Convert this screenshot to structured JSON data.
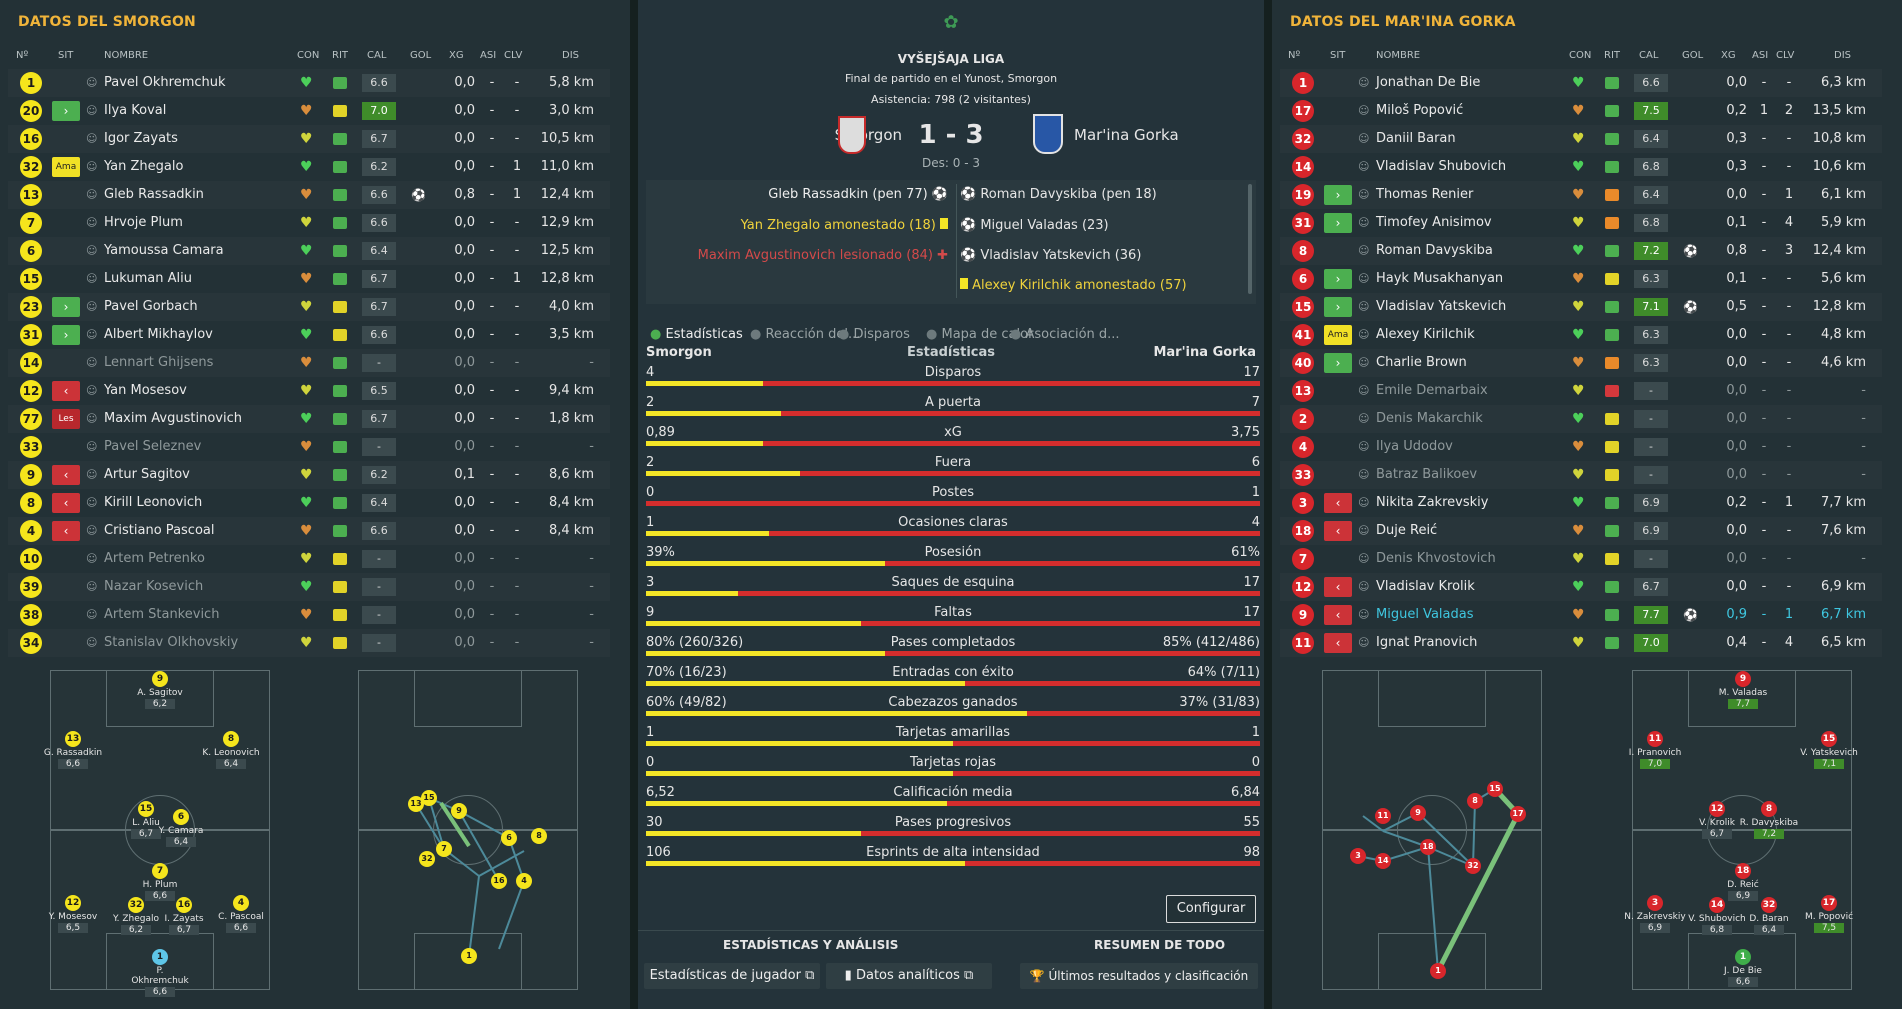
{
  "left": {
    "title": "DATOS DEL SMORGON",
    "headers": {
      "no": "Nº",
      "sit": "SIT",
      "nombre": "NOMBRE",
      "con": "CON",
      "rit": "RIT",
      "cal": "CAL",
      "gol": "GOL",
      "xg": "XG",
      "asi": "ASI",
      "clv": "CLV",
      "dis": "DIS"
    },
    "players": [
      {
        "n": "1",
        "sit": "",
        "name": "Pavel Okhremchuk",
        "rit": "g",
        "cal": "6.6",
        "gol": "",
        "xg": "0,0",
        "asi": "-",
        "clv": "-",
        "dis": "5,8 km"
      },
      {
        "n": "20",
        "sit": "sub",
        "name": "Ilya Koval",
        "rit": "y",
        "cal": "7.0",
        "calg": true,
        "gol": "",
        "xg": "0,0",
        "asi": "-",
        "clv": "-",
        "dis": "3,0 km"
      },
      {
        "n": "16",
        "sit": "",
        "name": "Igor Zayats",
        "rit": "g",
        "cal": "6.7",
        "gol": "",
        "xg": "0,0",
        "asi": "-",
        "clv": "-",
        "dis": "10,5 km"
      },
      {
        "n": "32",
        "sit": "ama",
        "name": "Yan Zhegalo",
        "rit": "g",
        "cal": "6.2",
        "gol": "",
        "xg": "0,0",
        "asi": "-",
        "clv": "1",
        "dis": "11,0 km"
      },
      {
        "n": "13",
        "sit": "",
        "name": "Gleb Rassadkin",
        "rit": "g",
        "cal": "6.6",
        "gol": "⚽",
        "xg": "0,8",
        "asi": "-",
        "clv": "1",
        "dis": "12,4 km"
      },
      {
        "n": "7",
        "sit": "",
        "name": "Hrvoje Plum",
        "rit": "g",
        "cal": "6.6",
        "gol": "",
        "xg": "0,0",
        "asi": "-",
        "clv": "-",
        "dis": "12,9 km"
      },
      {
        "n": "6",
        "sit": "",
        "name": "Yamoussa Camara",
        "rit": "g",
        "cal": "6.4",
        "gol": "",
        "xg": "0,0",
        "asi": "-",
        "clv": "-",
        "dis": "12,5 km"
      },
      {
        "n": "15",
        "sit": "",
        "name": "Lukuman Aliu",
        "rit": "g",
        "cal": "6.7",
        "gol": "",
        "xg": "0,0",
        "asi": "-",
        "clv": "1",
        "dis": "12,8 km"
      },
      {
        "n": "23",
        "sit": "sub",
        "name": "Pavel Gorbach",
        "rit": "y",
        "cal": "6.7",
        "gol": "",
        "xg": "0,0",
        "asi": "-",
        "clv": "-",
        "dis": "4,0 km"
      },
      {
        "n": "31",
        "sit": "sub",
        "name": "Albert Mikhaylov",
        "rit": "y",
        "cal": "6.6",
        "gol": "",
        "xg": "0,0",
        "asi": "-",
        "clv": "-",
        "dis": "3,5 km"
      },
      {
        "n": "14",
        "sit": "",
        "name": "Lennart Ghijsens",
        "rit": "g",
        "cal": "-",
        "gol": "",
        "xg": "0,0",
        "asi": "-",
        "clv": "-",
        "dis": "-",
        "dim": true
      },
      {
        "n": "12",
        "sit": "out",
        "name": "Yan Mosesov",
        "rit": "g",
        "cal": "6.5",
        "gol": "",
        "xg": "0,0",
        "asi": "-",
        "clv": "-",
        "dis": "9,4 km"
      },
      {
        "n": "77",
        "sit": "les",
        "name": "Maxim Avgustinovich",
        "rit": "g",
        "cal": "6.7",
        "gol": "",
        "xg": "0,0",
        "asi": "-",
        "clv": "-",
        "dis": "1,8 km"
      },
      {
        "n": "33",
        "sit": "",
        "name": "Pavel Seleznev",
        "rit": "g",
        "cal": "-",
        "gol": "",
        "xg": "0,0",
        "asi": "-",
        "clv": "-",
        "dis": "-",
        "dim": true
      },
      {
        "n": "9",
        "sit": "out",
        "name": "Artur Sagitov",
        "rit": "g",
        "cal": "6.2",
        "gol": "",
        "xg": "0,1",
        "asi": "-",
        "clv": "-",
        "dis": "8,6 km"
      },
      {
        "n": "8",
        "sit": "out",
        "name": "Kirill Leonovich",
        "rit": "g",
        "cal": "6.4",
        "gol": "",
        "xg": "0,0",
        "asi": "-",
        "clv": "-",
        "dis": "8,4 km"
      },
      {
        "n": "4",
        "sit": "out",
        "name": "Cristiano Pascoal",
        "rit": "g",
        "cal": "6.6",
        "gol": "",
        "xg": "0,0",
        "asi": "-",
        "clv": "-",
        "dis": "8,4 km"
      },
      {
        "n": "10",
        "sit": "",
        "name": "Artem Petrenko",
        "rit": "y",
        "cal": "-",
        "gol": "",
        "xg": "0,0",
        "asi": "-",
        "clv": "-",
        "dis": "-",
        "dim": true
      },
      {
        "n": "39",
        "sit": "",
        "name": "Nazar Kosevich",
        "rit": "y",
        "cal": "-",
        "gol": "",
        "xg": "0,0",
        "asi": "-",
        "clv": "-",
        "dis": "-",
        "dim": true
      },
      {
        "n": "38",
        "sit": "",
        "name": "Artem Stankevich",
        "rit": "y",
        "cal": "-",
        "gol": "",
        "xg": "0,0",
        "asi": "-",
        "clv": "-",
        "dis": "-",
        "dim": true
      },
      {
        "n": "34",
        "sit": "",
        "name": "Stanislav Olkhovskiy",
        "rit": "y",
        "cal": "-",
        "gol": "",
        "xg": "0,0",
        "asi": "-",
        "clv": "-",
        "dis": "-",
        "dim": true
      }
    ]
  },
  "right": {
    "title": "DATOS DEL MAR'INA GORKA",
    "headers": {
      "no": "Nº",
      "sit": "SIT",
      "nombre": "NOMBRE",
      "con": "CON",
      "rit": "RIT",
      "cal": "CAL",
      "gol": "GOL",
      "xg": "XG",
      "asi": "ASI",
      "clv": "CLV",
      "dis": "DIS"
    },
    "players": [
      {
        "n": "1",
        "sit": "",
        "name": "Jonathan De Bie",
        "rit": "g",
        "cal": "6.6",
        "gol": "",
        "xg": "0,0",
        "asi": "-",
        "clv": "-",
        "dis": "6,3 km"
      },
      {
        "n": "17",
        "sit": "",
        "name": "Miloš Popović",
        "rit": "g",
        "cal": "7.5",
        "calg": true,
        "gol": "",
        "xg": "0,2",
        "asi": "1",
        "clv": "2",
        "dis": "13,5 km"
      },
      {
        "n": "32",
        "sit": "",
        "name": "Daniil Baran",
        "rit": "g",
        "cal": "6.4",
        "gol": "",
        "xg": "0,3",
        "asi": "-",
        "clv": "-",
        "dis": "10,8 km"
      },
      {
        "n": "14",
        "sit": "",
        "name": "Vladislav Shubovich",
        "rit": "g",
        "cal": "6.8",
        "gol": "",
        "xg": "0,3",
        "asi": "-",
        "clv": "-",
        "dis": "10,6 km"
      },
      {
        "n": "19",
        "sit": "sub",
        "name": "Thomas Renier",
        "rit": "o",
        "cal": "6.4",
        "gol": "",
        "xg": "0,0",
        "asi": "-",
        "clv": "1",
        "dis": "6,1 km"
      },
      {
        "n": "31",
        "sit": "sub",
        "name": "Timofey Anisimov",
        "rit": "o",
        "cal": "6.8",
        "gol": "",
        "xg": "0,1",
        "asi": "-",
        "clv": "4",
        "dis": "5,9 km"
      },
      {
        "n": "8",
        "sit": "",
        "name": "Roman Davyskiba",
        "rit": "g",
        "cal": "7.2",
        "calg": true,
        "gol": "⚽",
        "xg": "0,8",
        "asi": "-",
        "clv": "3",
        "dis": "12,4 km"
      },
      {
        "n": "6",
        "sit": "sub",
        "name": "Hayk Musakhanyan",
        "rit": "y",
        "cal": "6.3",
        "gol": "",
        "xg": "0,1",
        "asi": "-",
        "clv": "-",
        "dis": "5,6 km"
      },
      {
        "n": "15",
        "sit": "sub",
        "name": "Vladislav Yatskevich",
        "rit": "g",
        "cal": "7.1",
        "calg": true,
        "gol": "⚽",
        "xg": "0,5",
        "asi": "-",
        "clv": "-",
        "dis": "12,8 km"
      },
      {
        "n": "41",
        "sit": "ama",
        "name": "Alexey Kirilchik",
        "rit": "g",
        "cal": "6.3",
        "gol": "",
        "xg": "0,0",
        "asi": "-",
        "clv": "-",
        "dis": "4,8 km"
      },
      {
        "n": "40",
        "sit": "sub",
        "name": "Charlie Brown",
        "rit": "o",
        "cal": "6.3",
        "gol": "",
        "xg": "0,0",
        "asi": "-",
        "clv": "-",
        "dis": "4,6 km"
      },
      {
        "n": "13",
        "sit": "",
        "name": "Emile Demarbaix",
        "rit": "r",
        "cal": "-",
        "gol": "",
        "xg": "0,0",
        "asi": "-",
        "clv": "-",
        "dis": "-",
        "dim": true
      },
      {
        "n": "2",
        "sit": "",
        "name": "Denis Makarchik",
        "rit": "y",
        "cal": "-",
        "gol": "",
        "xg": "0,0",
        "asi": "-",
        "clv": "-",
        "dis": "-",
        "dim": true
      },
      {
        "n": "4",
        "sit": "",
        "name": "Ilya Udodov",
        "rit": "y",
        "cal": "-",
        "gol": "",
        "xg": "0,0",
        "asi": "-",
        "clv": "-",
        "dis": "-",
        "dim": true
      },
      {
        "n": "33",
        "sit": "",
        "name": "Batraz Balikoev",
        "rit": "y",
        "cal": "-",
        "gol": "",
        "xg": "0,0",
        "asi": "-",
        "clv": "-",
        "dis": "-",
        "dim": true
      },
      {
        "n": "3",
        "sit": "out",
        "name": "Nikita Zakrevskiy",
        "rit": "g",
        "cal": "6.9",
        "gol": "",
        "xg": "0,2",
        "asi": "-",
        "clv": "1",
        "dis": "7,7 km"
      },
      {
        "n": "18",
        "sit": "out",
        "name": "Duje Reić",
        "rit": "g",
        "cal": "6.9",
        "gol": "",
        "xg": "0,0",
        "asi": "-",
        "clv": "-",
        "dis": "7,6 km"
      },
      {
        "n": "7",
        "sit": "",
        "name": "Denis Khvostovich",
        "rit": "y",
        "cal": "-",
        "gol": "",
        "xg": "0,0",
        "asi": "-",
        "clv": "-",
        "dis": "-",
        "dim": true
      },
      {
        "n": "12",
        "sit": "out",
        "name": "Vladislav Krolik",
        "rit": "g",
        "cal": "6.7",
        "gol": "",
        "xg": "0,0",
        "asi": "-",
        "clv": "-",
        "dis": "6,9 km"
      },
      {
        "n": "9",
        "sit": "out",
        "name": "Miguel Valadas",
        "rit": "g",
        "cal": "7.7",
        "calg": true,
        "gol": "⚽",
        "xg": "0,9",
        "asi": "-",
        "clv": "1",
        "dis": "6,7 km",
        "hl": true
      },
      {
        "n": "11",
        "sit": "out",
        "name": "Ignat Pranovich",
        "rit": "g",
        "cal": "7.0",
        "calg": true,
        "gol": "",
        "xg": "0,4",
        "asi": "-",
        "clv": "4",
        "dis": "6,5 km"
      }
    ]
  },
  "sit_labels": {
    "ama": "Ama",
    "les": "Les",
    "sub": "›",
    "out": "‹"
  },
  "match": {
    "league": "VYŠEJŠAJA LIGA",
    "venue": "Final de partido en el Yunost, Smorgon",
    "attendance": "Asistencia: 798 (2 visitantes)",
    "home": "Smorgon",
    "away": "Mar'ina Gorka",
    "score": "1 - 3",
    "halftime": "Des: 0 - 3",
    "events_home": [
      "Gleb Rassadkin (pen 77)",
      "Yan Zhegalo amonestado (18)",
      "Maxim Avgustinovich lesionado (84)"
    ],
    "events_away": [
      "Roman Davyskiba (pen 18)",
      "Miguel Valadas (23)",
      "Vladislav Yatskevich (36)",
      "Alexey Kirilchik amonestado (57)"
    ]
  },
  "tabs": [
    "Estadísticas",
    "Reacción del...",
    "Disparos",
    "Mapa de calor",
    "Asociación d..."
  ],
  "stats_head": {
    "home": "Smorgon",
    "mid": "Estadísticas",
    "away": "Mar'ina Gorka"
  },
  "stats": [
    {
      "label": "Disparos",
      "h": "4",
      "a": "17",
      "p": 0.19
    },
    {
      "label": "A puerta",
      "h": "2",
      "a": "7",
      "p": 0.22
    },
    {
      "label": "xG",
      "h": "0,89",
      "a": "3,75",
      "p": 0.19
    },
    {
      "label": "Fuera",
      "h": "2",
      "a": "6",
      "p": 0.25
    },
    {
      "label": "Postes",
      "h": "0",
      "a": "1",
      "p": 0.0
    },
    {
      "label": "Ocasiones claras",
      "h": "1",
      "a": "4",
      "p": 0.2
    },
    {
      "label": "Posesión",
      "h": "39%",
      "a": "61%",
      "p": 0.39
    },
    {
      "label": "Saques de esquina",
      "h": "3",
      "a": "17",
      "p": 0.15
    },
    {
      "label": "Faltas",
      "h": "9",
      "a": "17",
      "p": 0.35
    },
    {
      "label": "Pases completados",
      "h": "80% (260/326)",
      "a": "85% (412/486)",
      "p": 0.39
    },
    {
      "label": "Entradas con éxito",
      "h": "70% (16/23)",
      "a": "64% (7/11)",
      "p": 0.52
    },
    {
      "label": "Cabezazos ganados",
      "h": "60% (49/82)",
      "a": "37% (31/83)",
      "p": 0.62
    },
    {
      "label": "Tarjetas amarillas",
      "h": "1",
      "a": "1",
      "p": 0.5
    },
    {
      "label": "Tarjetas rojas",
      "h": "0",
      "a": "0",
      "p": 0.5
    },
    {
      "label": "Calificación media",
      "h": "6,52",
      "a": "6,84",
      "p": 0.49
    },
    {
      "label": "Pases progresivos",
      "h": "30",
      "a": "55",
      "p": 0.35
    },
    {
      "label": "Esprints de alta intensidad",
      "h": "106",
      "a": "98",
      "p": 0.52
    }
  ],
  "buttons": {
    "configurar": "Configurar",
    "est_analisis": "ESTADÍSTICAS Y ANÁLISIS",
    "resumen": "RESUMEN DE TODO",
    "est_jugador": "Estadísticas de jugador",
    "datos": "Datos analíticos",
    "ultimos": "Últimos resultados y clasificación"
  },
  "formation_left": [
    {
      "n": "9",
      "name": "A. Sagitov",
      "r": "6,2"
    },
    {
      "n": "13",
      "name": "G. Rassadkin",
      "r": "6,6"
    },
    {
      "n": "8",
      "name": "K. Leonovich",
      "r": "6,4"
    },
    {
      "n": "15",
      "name": "L. Aliu",
      "r": "6,7"
    },
    {
      "n": "6",
      "name": "Y. Camara",
      "r": "6,4"
    },
    {
      "n": "7",
      "name": "H. Plum",
      "r": "6,6"
    },
    {
      "n": "12",
      "name": "Y. Mosesov",
      "r": "6,5"
    },
    {
      "n": "32",
      "name": "Y. Zhegalo",
      "r": "6,2"
    },
    {
      "n": "16",
      "name": "I. Zayats",
      "r": "6,7"
    },
    {
      "n": "4",
      "name": "C. Pascoal",
      "r": "6,6"
    },
    {
      "n": "1",
      "name": "P. Okhremchuk",
      "r": "6,6"
    }
  ],
  "formation_right": [
    {
      "n": "9",
      "name": "M. Valadas",
      "r": "7,7",
      "g": true
    },
    {
      "n": "11",
      "name": "I. Pranovich",
      "r": "7,0",
      "g": true
    },
    {
      "n": "15",
      "name": "V. Yatskevich",
      "r": "7,1",
      "g": true
    },
    {
      "n": "12",
      "name": "V. Krolik",
      "r": "6,7"
    },
    {
      "n": "8",
      "name": "R. Davyskiba",
      "r": "7,2",
      "g": true
    },
    {
      "n": "18",
      "name": "D. Reić",
      "r": "6,9"
    },
    {
      "n": "3",
      "name": "N. Zakrevskiy",
      "r": "6,9"
    },
    {
      "n": "14",
      "name": "V. Shubovich",
      "r": "6,8"
    },
    {
      "n": "32",
      "name": "D. Baran",
      "r": "6,4"
    },
    {
      "n": "17",
      "name": "M. Popović",
      "r": "7,5",
      "g": true
    },
    {
      "n": "1",
      "name": "J. De Bie",
      "r": "6,6"
    }
  ],
  "colors": {
    "accent": "#f0b43a",
    "home": "#f5e51c",
    "away": "#d8262b",
    "good": "#4caf50"
  }
}
